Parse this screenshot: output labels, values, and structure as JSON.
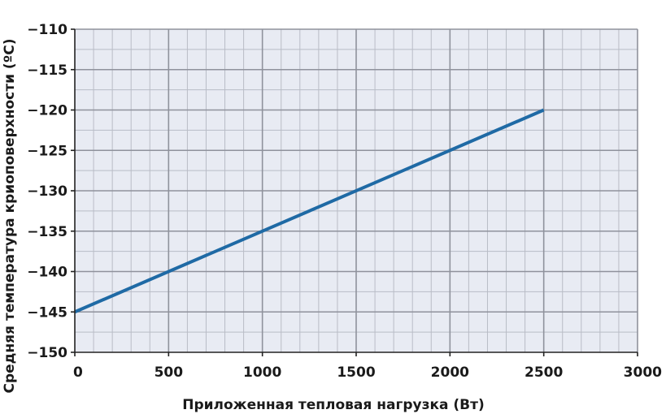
{
  "chart_data": {
    "type": "line",
    "title": "",
    "xlabel": "Приложенная тепловая нагрузка (Вт)",
    "ylabel": "Средняя температура криоповерхности (ºC)",
    "xlim": [
      0,
      3000
    ],
    "ylim": [
      -150,
      -110
    ],
    "x_ticks": [
      0,
      500,
      1000,
      1500,
      2000,
      2500,
      3000
    ],
    "x_tick_labels": [
      "0",
      "500",
      "1000",
      "1500",
      "2000",
      "2500",
      "3000"
    ],
    "y_ticks": [
      -110,
      -115,
      -120,
      -125,
      -130,
      -135,
      -140,
      -145,
      -150
    ],
    "y_tick_labels": [
      "−110",
      "−115",
      "−120",
      "−125",
      "−130",
      "−135",
      "−140",
      "−145",
      "−150"
    ],
    "grid": true,
    "series": [
      {
        "x": [
          0,
          2500
        ],
        "y": [
          -145,
          -120
        ]
      }
    ],
    "colors": {
      "line": "#1f6aa5",
      "plot_background": "#e8ebf3",
      "minor_grid": "#b9bcc6",
      "major_grid": "#8f929c",
      "axis": "#222222"
    }
  }
}
